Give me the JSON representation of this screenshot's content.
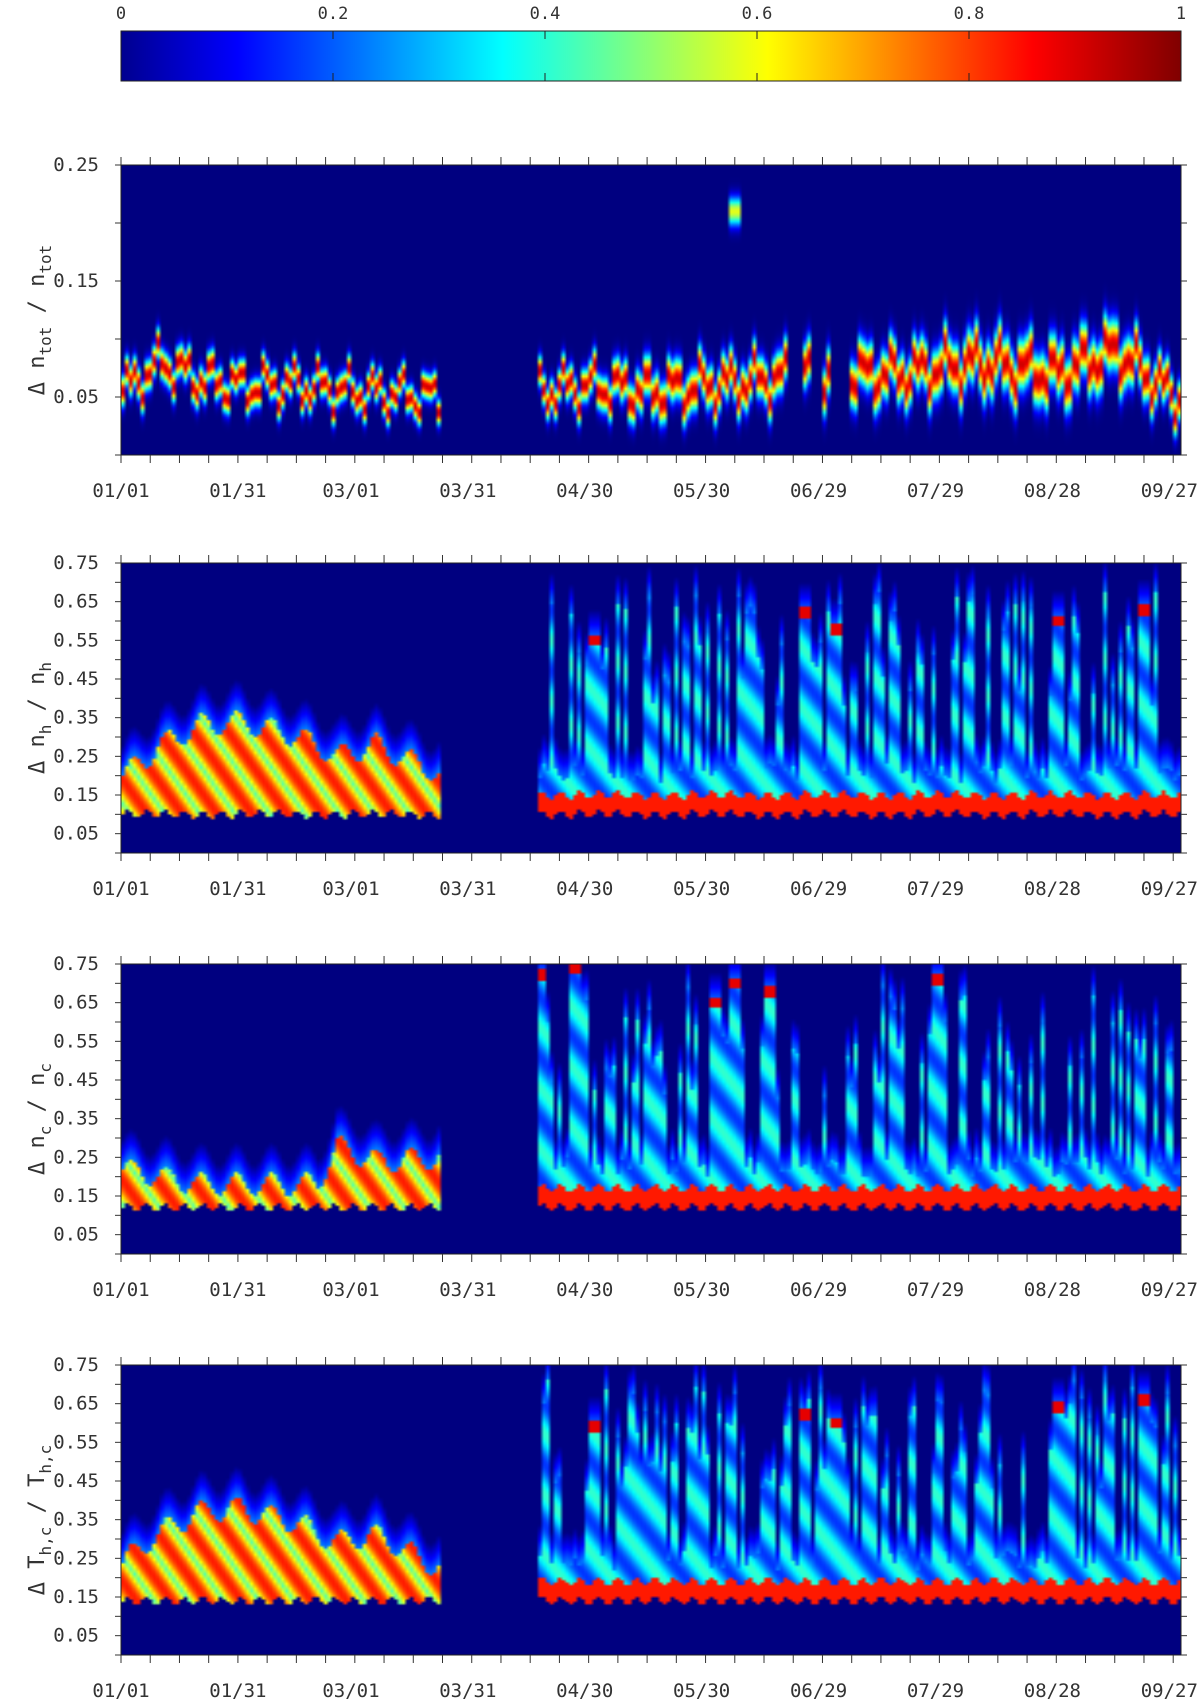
{
  "chart_data": [
    {
      "type": "heatmap",
      "role": "colorbar",
      "colormap": "jet",
      "range": [
        0,
        1
      ],
      "ticks": [
        "0",
        "0.2",
        "0.4",
        "0.6",
        "0.8",
        "1"
      ],
      "tick_values": [
        0,
        0.2,
        0.4,
        0.6,
        0.8,
        1
      ]
    },
    {
      "type": "heatmap",
      "ylabel": "Δ n",
      "ylabel_sub": "tot",
      "ylabel_mid": " / n",
      "ylabel_sub2": "tot",
      "ylim": [
        0,
        0.25
      ],
      "yticks": [
        "0.05",
        "0.15",
        "0.25"
      ],
      "ytick_values": [
        0.05,
        0.15,
        0.25
      ],
      "xticks": [
        "01/01",
        "01/31",
        "03/01",
        "03/31",
        "04/30",
        "05/30",
        "06/29",
        "07/29",
        "08/28",
        "09/27"
      ],
      "xtick_days": [
        0,
        30,
        59,
        89,
        119,
        149,
        179,
        209,
        239,
        269
      ],
      "data_gap_days": [
        82,
        107
      ],
      "ridge": {
        "days": [
          0,
          10,
          20,
          30,
          45,
          60,
          82,
          107,
          120,
          135,
          150,
          165,
          180,
          200,
          220,
          240,
          255,
          270
        ],
        "center": [
          0.055,
          0.08,
          0.065,
          0.06,
          0.06,
          0.055,
          0.05,
          0.055,
          0.06,
          0.055,
          0.06,
          0.065,
          0.07,
          0.07,
          0.08,
          0.07,
          0.09,
          0.05
        ],
        "width": [
          0.012,
          0.012,
          0.012,
          0.011,
          0.011,
          0.011,
          0.01,
          0.012,
          0.013,
          0.016,
          0.016,
          0.016,
          0.018,
          0.018,
          0.02,
          0.02,
          0.02,
          0.015
        ]
      },
      "gaps_days": [
        [
          171,
          175
        ],
        [
          177,
          180
        ],
        [
          182,
          187
        ]
      ],
      "spike": {
        "day": 157,
        "value": 0.21
      }
    },
    {
      "type": "heatmap",
      "ylabel": "Δ n",
      "ylabel_sub": "h",
      "ylabel_mid": " / n",
      "ylabel_sub2": "h",
      "ylim": [
        0,
        0.75
      ],
      "yticks": [
        "0.05",
        "0.15",
        "0.25",
        "0.35",
        "0.45",
        "0.55",
        "0.65",
        "0.75"
      ],
      "ytick_values": [
        0.05,
        0.15,
        0.25,
        0.35,
        0.45,
        0.55,
        0.65,
        0.75
      ],
      "xticks": [
        "01/01",
        "01/31",
        "03/01",
        "03/31",
        "04/30",
        "05/30",
        "06/29",
        "07/29",
        "08/28",
        "09/27"
      ],
      "xtick_days": [
        0,
        30,
        59,
        89,
        119,
        149,
        179,
        209,
        239,
        269
      ],
      "data_gap_days": [
        82,
        107
      ],
      "base": 0.13,
      "band": {
        "days": [
          0,
          10,
          20,
          30,
          45,
          55,
          65,
          82
        ],
        "top": [
          0.2,
          0.28,
          0.33,
          0.34,
          0.3,
          0.25,
          0.28,
          0.2
        ]
      },
      "spike_density": 0.55,
      "peaks": [
        {
          "day": 121,
          "value": 0.55
        },
        {
          "day": 175,
          "value": 0.62
        },
        {
          "day": 183,
          "value": 0.58
        },
        {
          "day": 240,
          "value": 0.6
        },
        {
          "day": 262,
          "value": 0.63
        }
      ]
    },
    {
      "type": "heatmap",
      "ylabel": "Δ n",
      "ylabel_sub": "c",
      "ylabel_mid": " / n",
      "ylabel_sub2": "c",
      "ylim": [
        0,
        0.75
      ],
      "yticks": [
        "0.05",
        "0.15",
        "0.25",
        "0.35",
        "0.45",
        "0.55",
        "0.65",
        "0.75"
      ],
      "ytick_values": [
        0.05,
        0.15,
        0.25,
        0.35,
        0.45,
        0.55,
        0.65,
        0.75
      ],
      "xticks": [
        "01/01",
        "01/31",
        "03/01",
        "03/31",
        "04/30",
        "05/30",
        "06/29",
        "07/29",
        "08/28",
        "09/27"
      ],
      "xtick_days": [
        0,
        30,
        59,
        89,
        119,
        149,
        179,
        209,
        239,
        269
      ],
      "data_gap_days": [
        82,
        107
      ],
      "base": 0.15,
      "band": {
        "days": [
          0,
          10,
          20,
          40,
          50,
          55,
          65,
          82
        ],
        "top": [
          0.22,
          0.2,
          0.18,
          0.18,
          0.18,
          0.28,
          0.24,
          0.25
        ]
      },
      "spike_density": 0.45,
      "peaks": [
        {
          "day": 107,
          "value": 0.72
        },
        {
          "day": 116,
          "value": 0.74
        },
        {
          "day": 152,
          "value": 0.65
        },
        {
          "day": 157,
          "value": 0.7
        },
        {
          "day": 166,
          "value": 0.68
        },
        {
          "day": 209,
          "value": 0.71
        }
      ]
    },
    {
      "type": "heatmap",
      "ylabel": "Δ T",
      "ylabel_sub": "h,c",
      "ylabel_mid": " / T",
      "ylabel_sub2": "h,c",
      "ylim": [
        0,
        0.75
      ],
      "yticks": [
        "0.05",
        "0.15",
        "0.25",
        "0.35",
        "0.45",
        "0.55",
        "0.65",
        "0.75"
      ],
      "ytick_values": [
        0.05,
        0.15,
        0.25,
        0.35,
        0.45,
        0.55,
        0.65,
        0.75
      ],
      "xticks": [
        "01/01",
        "01/31",
        "03/01",
        "03/31",
        "04/30",
        "05/30",
        "06/29",
        "07/29",
        "08/28",
        "09/27"
      ],
      "xtick_days": [
        0,
        30,
        59,
        89,
        119,
        149,
        179,
        209,
        239,
        269
      ],
      "data_gap_days": [
        82,
        107
      ],
      "base": 0.17,
      "band": {
        "days": [
          0,
          10,
          20,
          30,
          45,
          55,
          65,
          82
        ],
        "top": [
          0.24,
          0.32,
          0.37,
          0.38,
          0.34,
          0.29,
          0.31,
          0.22
        ]
      },
      "spike_density": 0.55,
      "peaks": [
        {
          "day": 121,
          "value": 0.59
        },
        {
          "day": 175,
          "value": 0.62
        },
        {
          "day": 183,
          "value": 0.6
        },
        {
          "day": 240,
          "value": 0.64
        },
        {
          "day": 262,
          "value": 0.66
        }
      ]
    }
  ]
}
